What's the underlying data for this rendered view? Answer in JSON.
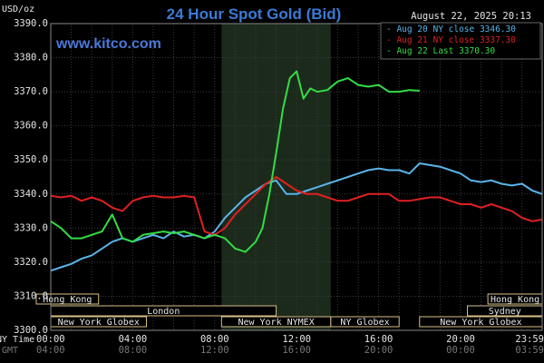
{
  "header": {
    "title": "24 Hour Spot Gold (Bid)",
    "unit": "USD/oz",
    "timestamp": "August 22, 2025 20:13",
    "site": "www.kitco.com",
    "row_label_ny": "NY Time",
    "row_label_gmt": "GMT"
  },
  "colors": {
    "background": "#000000",
    "plot_background": "#000000",
    "grid": "#3a3a3a",
    "highlight_band": "#1c2a1c",
    "title": "#3a7bd5",
    "site": "#4a78d8",
    "axis_text": "#e6e6e6",
    "gmt_text": "#777777",
    "session_fill": "#000000",
    "session_border": "#d8c08a",
    "session_text": "#e6e6e6",
    "legend_bg": "#000000"
  },
  "sessions": [
    {
      "label": "Hong Kong",
      "start": -10,
      "end": 140,
      "row": 0
    },
    {
      "label": "London",
      "start": 0,
      "end": 660,
      "row": 1
    },
    {
      "label": "New York Globex",
      "start": 0,
      "end": 280,
      "row": 2
    },
    {
      "label": "New York NYMEX",
      "start": 500,
      "end": 820,
      "row": 2
    },
    {
      "label": "NY Globex",
      "start": 820,
      "end": 1020,
      "row": 2
    },
    {
      "label": "Hong Kong",
      "start": 1280,
      "end": 1440,
      "row": 0
    },
    {
      "label": "Sydney",
      "start": 1220,
      "end": 1440,
      "row": 1
    },
    {
      "label": "New York Globex",
      "start": 1080,
      "end": 1440,
      "row": 2
    }
  ],
  "chart_data": {
    "type": "line",
    "title": "24 Hour Spot Gold (Bid)",
    "ylabel": "USD/oz",
    "xlabel": "",
    "ylim": [
      3300,
      3390
    ],
    "y_ticks": [
      "3390.0",
      "3380.0",
      "3370.0",
      "3360.0",
      "3350.0",
      "3340.0",
      "3330.0",
      "3320.0",
      "3310.0",
      "3300.0"
    ],
    "xlim": [
      0,
      1439
    ],
    "x_ticks_ny": [
      {
        "t": 0,
        "label": "00:00"
      },
      {
        "t": 240,
        "label": "04:00"
      },
      {
        "t": 480,
        "label": "08:00"
      },
      {
        "t": 720,
        "label": "12:00"
      },
      {
        "t": 960,
        "label": "16:00"
      },
      {
        "t": 1200,
        "label": "20:00"
      },
      {
        "t": 1439,
        "label": "23:59"
      }
    ],
    "x_ticks_gmt": [
      {
        "t": 0,
        "label": "04:00"
      },
      {
        "t": 240,
        "label": "08:00"
      },
      {
        "t": 480,
        "label": "12:00"
      },
      {
        "t": 720,
        "label": "16:00"
      },
      {
        "t": 960,
        "label": "20:00"
      },
      {
        "t": 1200,
        "label": "00:00"
      },
      {
        "t": 1439,
        "label": "03:59"
      }
    ],
    "highlight_range": [
      500,
      820
    ],
    "grid": true,
    "legend_position": "top-right",
    "series": [
      {
        "name": "Aug 20 NY close 3346.30",
        "color": "#5ab4e8",
        "points": [
          [
            0,
            3317.5
          ],
          [
            30,
            3318.5
          ],
          [
            60,
            3319.5
          ],
          [
            90,
            3321
          ],
          [
            120,
            3322
          ],
          [
            150,
            3324
          ],
          [
            180,
            3326
          ],
          [
            210,
            3327
          ],
          [
            240,
            3326
          ],
          [
            270,
            3327
          ],
          [
            300,
            3328
          ],
          [
            330,
            3327
          ],
          [
            360,
            3329
          ],
          [
            390,
            3327.5
          ],
          [
            420,
            3328
          ],
          [
            450,
            3327
          ],
          [
            480,
            3329
          ],
          [
            510,
            3333
          ],
          [
            540,
            3336
          ],
          [
            570,
            3339
          ],
          [
            600,
            3341
          ],
          [
            630,
            3343
          ],
          [
            660,
            3344
          ],
          [
            690,
            3340
          ],
          [
            720,
            3340
          ],
          [
            750,
            3341
          ],
          [
            780,
            3342
          ],
          [
            810,
            3343
          ],
          [
            840,
            3344
          ],
          [
            870,
            3345
          ],
          [
            900,
            3346
          ],
          [
            930,
            3347
          ],
          [
            960,
            3347.5
          ],
          [
            990,
            3347
          ],
          [
            1020,
            3347
          ],
          [
            1050,
            3346
          ],
          [
            1080,
            3349
          ],
          [
            1110,
            3348.5
          ],
          [
            1140,
            3348
          ],
          [
            1170,
            3347
          ],
          [
            1200,
            3346
          ],
          [
            1230,
            3344
          ],
          [
            1260,
            3343.5
          ],
          [
            1290,
            3344
          ],
          [
            1320,
            3343
          ],
          [
            1350,
            3342.5
          ],
          [
            1380,
            3343
          ],
          [
            1410,
            3341
          ],
          [
            1439,
            3340
          ]
        ]
      },
      {
        "name": "Aug 21 NY close 3337.30",
        "color": "#e02020",
        "points": [
          [
            0,
            3339.5
          ],
          [
            30,
            3339
          ],
          [
            60,
            3339.5
          ],
          [
            90,
            3338
          ],
          [
            120,
            3339
          ],
          [
            150,
            3338
          ],
          [
            180,
            3336
          ],
          [
            210,
            3335
          ],
          [
            240,
            3338
          ],
          [
            270,
            3339
          ],
          [
            300,
            3339.5
          ],
          [
            330,
            3339
          ],
          [
            360,
            3339
          ],
          [
            390,
            3339.5
          ],
          [
            420,
            3339
          ],
          [
            450,
            3329
          ],
          [
            480,
            3328
          ],
          [
            510,
            3330
          ],
          [
            540,
            3334
          ],
          [
            570,
            3337
          ],
          [
            600,
            3340
          ],
          [
            630,
            3343
          ],
          [
            660,
            3345
          ],
          [
            690,
            3343
          ],
          [
            720,
            3341
          ],
          [
            750,
            3340
          ],
          [
            780,
            3340
          ],
          [
            810,
            3339
          ],
          [
            840,
            3338
          ],
          [
            870,
            3338
          ],
          [
            900,
            3339
          ],
          [
            930,
            3340
          ],
          [
            960,
            3340
          ],
          [
            990,
            3340
          ],
          [
            1020,
            3338
          ],
          [
            1050,
            3338
          ],
          [
            1080,
            3338.5
          ],
          [
            1110,
            3339
          ],
          [
            1140,
            3339
          ],
          [
            1170,
            3338
          ],
          [
            1200,
            3337
          ],
          [
            1230,
            3337
          ],
          [
            1260,
            3336
          ],
          [
            1290,
            3337
          ],
          [
            1320,
            3336
          ],
          [
            1350,
            3335
          ],
          [
            1380,
            3333
          ],
          [
            1410,
            3332
          ],
          [
            1439,
            3332.5
          ]
        ]
      },
      {
        "name": "Aug 22 Last 3370.30",
        "color": "#33dd44",
        "points": [
          [
            0,
            3332
          ],
          [
            30,
            3330
          ],
          [
            60,
            3327
          ],
          [
            90,
            3327
          ],
          [
            120,
            3328
          ],
          [
            150,
            3329
          ],
          [
            180,
            3334
          ],
          [
            210,
            3327
          ],
          [
            240,
            3326
          ],
          [
            270,
            3328
          ],
          [
            300,
            3328.5
          ],
          [
            330,
            3329
          ],
          [
            360,
            3328.5
          ],
          [
            390,
            3329
          ],
          [
            420,
            3328
          ],
          [
            450,
            3327
          ],
          [
            480,
            3328
          ],
          [
            510,
            3327
          ],
          [
            540,
            3324
          ],
          [
            570,
            3323
          ],
          [
            600,
            3326
          ],
          [
            620,
            3330
          ],
          [
            640,
            3340
          ],
          [
            660,
            3352
          ],
          [
            680,
            3365
          ],
          [
            700,
            3374
          ],
          [
            720,
            3376
          ],
          [
            740,
            3368
          ],
          [
            760,
            3371
          ],
          [
            780,
            3370
          ],
          [
            810,
            3370.5
          ],
          [
            840,
            3373
          ],
          [
            870,
            3374
          ],
          [
            900,
            3372
          ],
          [
            930,
            3371.5
          ],
          [
            960,
            3372
          ],
          [
            990,
            3370
          ],
          [
            1020,
            3370
          ],
          [
            1050,
            3370.5
          ],
          [
            1080,
            3370.3
          ]
        ]
      }
    ]
  }
}
